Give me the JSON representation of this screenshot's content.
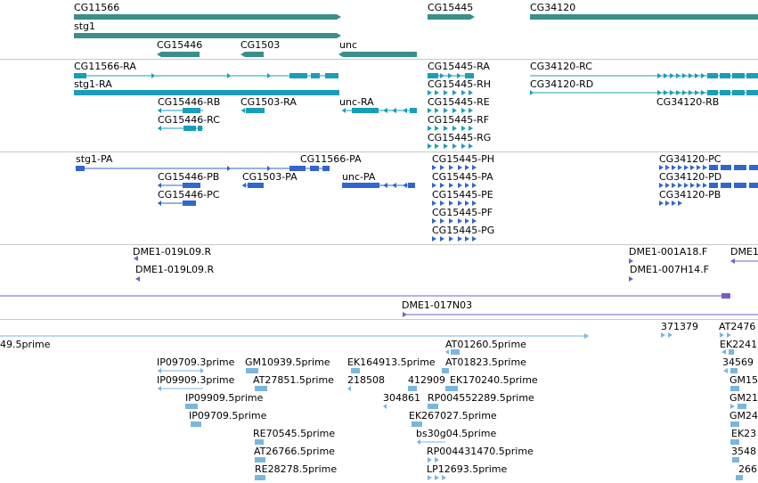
{
  "colors": {
    "gene": "#3a8f8a",
    "transcript": "#1a9eb8",
    "protein": "#3366cc",
    "clone": "#7a5cc0",
    "est": "#7ab6de"
  },
  "panels": {
    "genes": {
      "labels": [
        {
          "text": "CG11566"
        },
        {
          "text": "CG15445"
        },
        {
          "text": "CG34120"
        },
        {
          "text": "stg1"
        },
        {
          "text": "CG15446"
        },
        {
          "text": "CG1503"
        },
        {
          "text": "unc"
        }
      ]
    },
    "transcripts": {
      "labels": [
        {
          "text": "CG11566-RA"
        },
        {
          "text": "CG15445-RA"
        },
        {
          "text": "CG34120-RC"
        },
        {
          "text": "stg1-RA"
        },
        {
          "text": "CG15445-RH"
        },
        {
          "text": "CG34120-RD"
        },
        {
          "text": "CG15446-RB"
        },
        {
          "text": "CG1503-RA"
        },
        {
          "text": "unc-RA"
        },
        {
          "text": "CG15445-RE"
        },
        {
          "text": "CG34120-RB"
        },
        {
          "text": "CG15446-RC"
        },
        {
          "text": "CG15445-RF"
        },
        {
          "text": "CG15445-RG"
        }
      ]
    },
    "proteins": {
      "labels": [
        {
          "text": "stg1-PA"
        },
        {
          "text": "CG11566-PA"
        },
        {
          "text": "CG15445-PH"
        },
        {
          "text": "CG34120-PC"
        },
        {
          "text": "CG15446-PB"
        },
        {
          "text": "CG1503-PA"
        },
        {
          "text": "unc-PA"
        },
        {
          "text": "CG15445-PA"
        },
        {
          "text": "CG34120-PD"
        },
        {
          "text": "CG15446-PC"
        },
        {
          "text": "CG15445-PE"
        },
        {
          "text": "CG34120-PB"
        },
        {
          "text": "CG15445-PF"
        },
        {
          "text": "CG15445-PG"
        }
      ]
    },
    "clones": {
      "labels": [
        {
          "text": "DME1-019L09.R"
        },
        {
          "text": "DME1-001A18.F"
        },
        {
          "text": "DME1"
        },
        {
          "text": "DME1-019L09.R"
        },
        {
          "text": "DME1-007H14.F"
        },
        {
          "text": "DME1-017N03"
        }
      ]
    },
    "ests": {
      "labels": [
        {
          "text": "371379"
        },
        {
          "text": "AT2476"
        },
        {
          "text": "49.5prime"
        },
        {
          "text": "AT01260.5prime"
        },
        {
          "text": "EK2241"
        },
        {
          "text": "IP09709.3prime"
        },
        {
          "text": "GM10939.5prime"
        },
        {
          "text": "EK164913.5prime"
        },
        {
          "text": "AT01823.5prime"
        },
        {
          "text": "34569"
        },
        {
          "text": "IP09909.3prime"
        },
        {
          "text": "AT27851.5prime"
        },
        {
          "text": "218508"
        },
        {
          "text": "412909"
        },
        {
          "text": "EK170240.5prime"
        },
        {
          "text": "GM15"
        },
        {
          "text": "IP09909.5prime"
        },
        {
          "text": "304861"
        },
        {
          "text": "RP004552289.5prime"
        },
        {
          "text": "GM21"
        },
        {
          "text": "IP09709.5prime"
        },
        {
          "text": "EK267027.5prime"
        },
        {
          "text": "GM24"
        },
        {
          "text": "RE70545.5prime"
        },
        {
          "text": "bs30g04.5prime"
        },
        {
          "text": "EK23"
        },
        {
          "text": "AT26766.5prime"
        },
        {
          "text": "RP004431470.5prime"
        },
        {
          "text": "3548"
        },
        {
          "text": "RE28278.5prime"
        },
        {
          "text": "LP12693.5prime"
        },
        {
          "text": "266"
        }
      ]
    }
  }
}
